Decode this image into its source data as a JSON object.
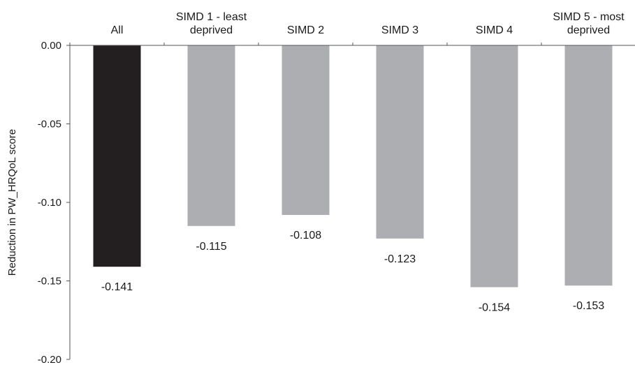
{
  "chart_data": {
    "type": "bar",
    "categories": [
      [
        "All"
      ],
      [
        "SIMD 1 - least",
        "deprived"
      ],
      [
        "SIMD 2"
      ],
      [
        "SIMD 3"
      ],
      [
        "SIMD 4"
      ],
      [
        "SIMD 5 - most",
        "deprived"
      ]
    ],
    "values": [
      -0.141,
      -0.115,
      -0.108,
      -0.123,
      -0.154,
      -0.153
    ],
    "value_labels": [
      "-0.141",
      "-0.115",
      "-0.108",
      "-0.123",
      "-0.154",
      "-0.153"
    ],
    "colors": [
      "#231f20",
      "#adaeb2",
      "#adaeb2",
      "#adaeb2",
      "#adaeb2",
      "#adaeb2"
    ],
    "xlabel": "",
    "ylabel": "Reduction in PW_HRQoL  score",
    "ylim": [
      -0.2,
      0
    ],
    "yticks": [
      0,
      -0.05,
      -0.1,
      -0.15,
      -0.2
    ],
    "ytick_labels": [
      "0.00",
      "-0.05",
      "-0.10",
      "-0.15",
      "-0.20"
    ],
    "grid": false,
    "category_axis_position": "top"
  }
}
